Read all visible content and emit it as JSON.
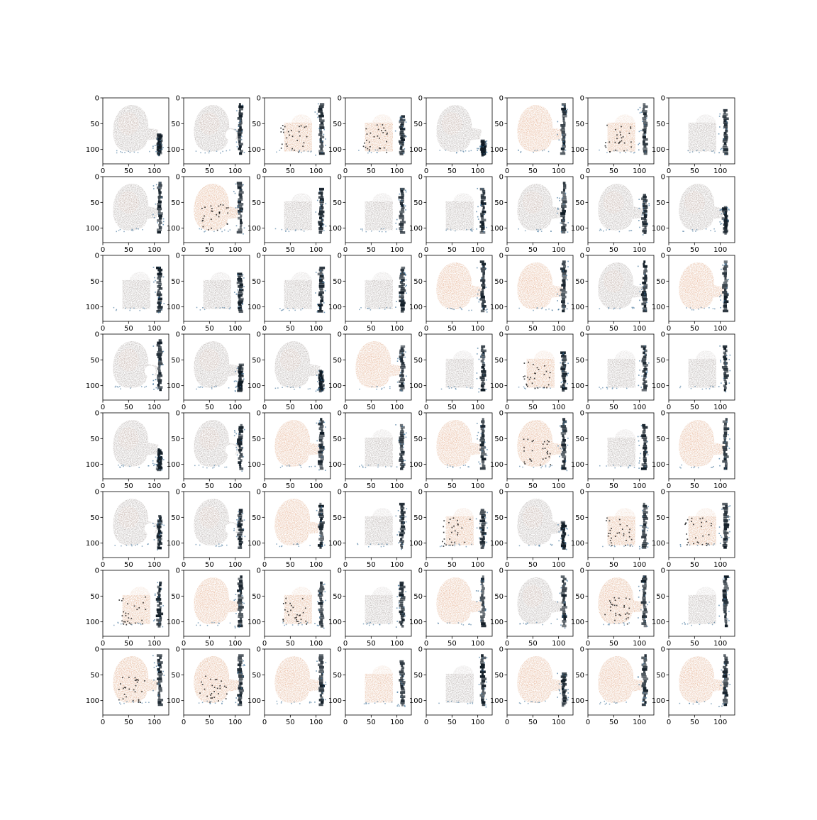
{
  "chart_data": {
    "type": "heatmap",
    "grid": {
      "rows": 8,
      "cols": 8
    },
    "xlim": [
      0,
      128
    ],
    "ylim": [
      128,
      0
    ],
    "xticks": [
      "0",
      "50",
      "100"
    ],
    "yticks": [
      "0",
      "50",
      "100"
    ],
    "xtick_values": [
      0,
      50,
      100
    ],
    "ytick_values": [
      0,
      50,
      100
    ],
    "grid_lines": false,
    "colors": {
      "blob_gray": "#948a86",
      "blob_orange": "#d8956a",
      "dark_stripe": "#0e1a24",
      "speckle_blue": "#3a6e96",
      "background": "#ffffff"
    },
    "panels": [
      {
        "style": "gray",
        "square": 0,
        "hole": 0,
        "stripe": 0.5,
        "sparse": 0
      },
      {
        "style": "gray",
        "square": 0,
        "hole": 1,
        "stripe": 1,
        "sparse": 0
      },
      {
        "style": "orange",
        "square": 1,
        "hole": 0,
        "stripe": 1,
        "sparse": 1
      },
      {
        "style": "orange",
        "square": 1,
        "hole": 0,
        "stripe": 0.8,
        "sparse": 1
      },
      {
        "style": "gray",
        "square": 0,
        "hole": 0,
        "stripe": 0.4,
        "sparse": 0
      },
      {
        "style": "orange",
        "square": 0,
        "hole": 0,
        "stripe": 1,
        "sparse": 0
      },
      {
        "style": "orange",
        "square": 1,
        "hole": 0,
        "stripe": 1,
        "sparse": 1
      },
      {
        "style": "gray",
        "square": 1,
        "hole": 0,
        "stripe": 0.9,
        "sparse": 0
      },
      {
        "style": "gray",
        "square": 0,
        "hole": 0,
        "stripe": 1,
        "sparse": 0
      },
      {
        "style": "orange",
        "square": 0,
        "hole": 0,
        "stripe": 1,
        "sparse": 1
      },
      {
        "style": "gray",
        "square": 1,
        "hole": 0,
        "stripe": 0.9,
        "sparse": 0
      },
      {
        "style": "gray",
        "square": 1,
        "hole": 0,
        "stripe": 0.9,
        "sparse": 0
      },
      {
        "style": "gray",
        "square": 1,
        "hole": 0,
        "stripe": 0.9,
        "sparse": 0
      },
      {
        "style": "gray",
        "square": 0,
        "hole": 0,
        "stripe": 1,
        "sparse": 0
      },
      {
        "style": "gray",
        "square": 0,
        "hole": 0,
        "stripe": 0.8,
        "sparse": 0
      },
      {
        "style": "gray",
        "square": 0,
        "hole": 0,
        "stripe": 0.6,
        "sparse": 0
      },
      {
        "style": "gray",
        "square": 1,
        "hole": 0,
        "stripe": 0.9,
        "sparse": 0
      },
      {
        "style": "gray",
        "square": 1,
        "hole": 0,
        "stripe": 0.8,
        "sparse": 0
      },
      {
        "style": "gray",
        "square": 1,
        "hole": 0,
        "stripe": 0.9,
        "sparse": 0
      },
      {
        "style": "gray",
        "square": 1,
        "hole": 0,
        "stripe": 0.9,
        "sparse": 0
      },
      {
        "style": "orange",
        "square": 0,
        "hole": 0,
        "stripe": 1,
        "sparse": 0
      },
      {
        "style": "orange",
        "square": 0,
        "hole": 0,
        "stripe": 1,
        "sparse": 0
      },
      {
        "style": "gray",
        "square": 0,
        "hole": 0,
        "stripe": 1,
        "sparse": 0
      },
      {
        "style": "orange",
        "square": 0,
        "hole": 0,
        "stripe": 1,
        "sparse": 0
      },
      {
        "style": "gray",
        "square": 0,
        "hole": 1,
        "stripe": 1,
        "sparse": 0
      },
      {
        "style": "gray",
        "square": 0,
        "hole": 0,
        "stripe": 0.6,
        "sparse": 0
      },
      {
        "style": "gray",
        "square": 0,
        "hole": 0,
        "stripe": 0.5,
        "sparse": 0
      },
      {
        "style": "orange",
        "square": 0,
        "hole": 0,
        "stripe": 0.9,
        "sparse": 0
      },
      {
        "style": "gray",
        "square": 1,
        "hole": 0,
        "stripe": 0.9,
        "sparse": 0
      },
      {
        "style": "orange",
        "square": 1,
        "hole": 0,
        "stripe": 0.8,
        "sparse": 1
      },
      {
        "style": "gray",
        "square": 1,
        "hole": 0,
        "stripe": 0.9,
        "sparse": 0
      },
      {
        "style": "gray",
        "square": 1,
        "hole": 0,
        "stripe": 0.9,
        "sparse": 0
      },
      {
        "style": "gray",
        "square": 0,
        "hole": 0,
        "stripe": 0.5,
        "sparse": 0
      },
      {
        "style": "gray",
        "square": 0,
        "hole": 1,
        "stripe": 0.9,
        "sparse": 0
      },
      {
        "style": "orange",
        "square": 0,
        "hole": 0,
        "stripe": 1,
        "sparse": 0
      },
      {
        "style": "gray",
        "square": 1,
        "hole": 0,
        "stripe": 0.9,
        "sparse": 0
      },
      {
        "style": "orange",
        "square": 0,
        "hole": 0,
        "stripe": 1,
        "sparse": 0
      },
      {
        "style": "orange",
        "square": 0,
        "hole": 0,
        "stripe": 1,
        "sparse": 1
      },
      {
        "style": "gray",
        "square": 1,
        "hole": 0,
        "stripe": 0.9,
        "sparse": 0
      },
      {
        "style": "orange",
        "square": 0,
        "hole": 0,
        "stripe": 1,
        "sparse": 0
      },
      {
        "style": "gray",
        "square": 0,
        "hole": 1,
        "stripe": 0.7,
        "sparse": 0
      },
      {
        "style": "gray",
        "square": 0,
        "hole": 1,
        "stripe": 0.8,
        "sparse": 0
      },
      {
        "style": "orange",
        "square": 0,
        "hole": 0,
        "stripe": 0.9,
        "sparse": 0
      },
      {
        "style": "gray",
        "square": 1,
        "hole": 0,
        "stripe": 0.9,
        "sparse": 0
      },
      {
        "style": "orange",
        "square": 1,
        "hole": 0,
        "stripe": 0.8,
        "sparse": 1
      },
      {
        "style": "gray",
        "square": 0,
        "hole": 0,
        "stripe": 0.6,
        "sparse": 0
      },
      {
        "style": "orange",
        "square": 1,
        "hole": 0,
        "stripe": 0.9,
        "sparse": 1
      },
      {
        "style": "orange",
        "square": 1,
        "hole": 0,
        "stripe": 0.9,
        "sparse": 1
      },
      {
        "style": "orange",
        "square": 1,
        "hole": 0,
        "stripe": 0.9,
        "sparse": 1
      },
      {
        "style": "orange",
        "square": 0,
        "hole": 0,
        "stripe": 1,
        "sparse": 0
      },
      {
        "style": "orange",
        "square": 1,
        "hole": 0,
        "stripe": 0.9,
        "sparse": 1
      },
      {
        "style": "gray",
        "square": 1,
        "hole": 0,
        "stripe": 0.9,
        "sparse": 0
      },
      {
        "style": "orange",
        "square": 0,
        "hole": 0,
        "stripe": 1,
        "sparse": 0
      },
      {
        "style": "gray",
        "square": 0,
        "hole": 0,
        "stripe": 1,
        "sparse": 0
      },
      {
        "style": "orange",
        "square": 0,
        "hole": 0,
        "stripe": 1,
        "sparse": 1
      },
      {
        "style": "gray",
        "square": 1,
        "hole": 0,
        "stripe": 1,
        "sparse": 0
      },
      {
        "style": "orange",
        "square": 0,
        "hole": 0,
        "stripe": 1,
        "sparse": 1
      },
      {
        "style": "orange",
        "square": 0,
        "hole": 0,
        "stripe": 1,
        "sparse": 1
      },
      {
        "style": "orange",
        "square": 0,
        "hole": 0,
        "stripe": 1,
        "sparse": 0
      },
      {
        "style": "orange",
        "square": 1,
        "hole": 0,
        "stripe": 0.9,
        "sparse": 0
      },
      {
        "style": "gray",
        "square": 1,
        "hole": 0,
        "stripe": 1,
        "sparse": 0
      },
      {
        "style": "orange",
        "square": 0,
        "hole": 0,
        "stripe": 0.7,
        "sparse": 0
      },
      {
        "style": "orange",
        "square": 0,
        "hole": 0,
        "stripe": 1,
        "sparse": 0
      },
      {
        "style": "orange",
        "square": 0,
        "hole": 0,
        "stripe": 1,
        "sparse": 0
      }
    ]
  }
}
